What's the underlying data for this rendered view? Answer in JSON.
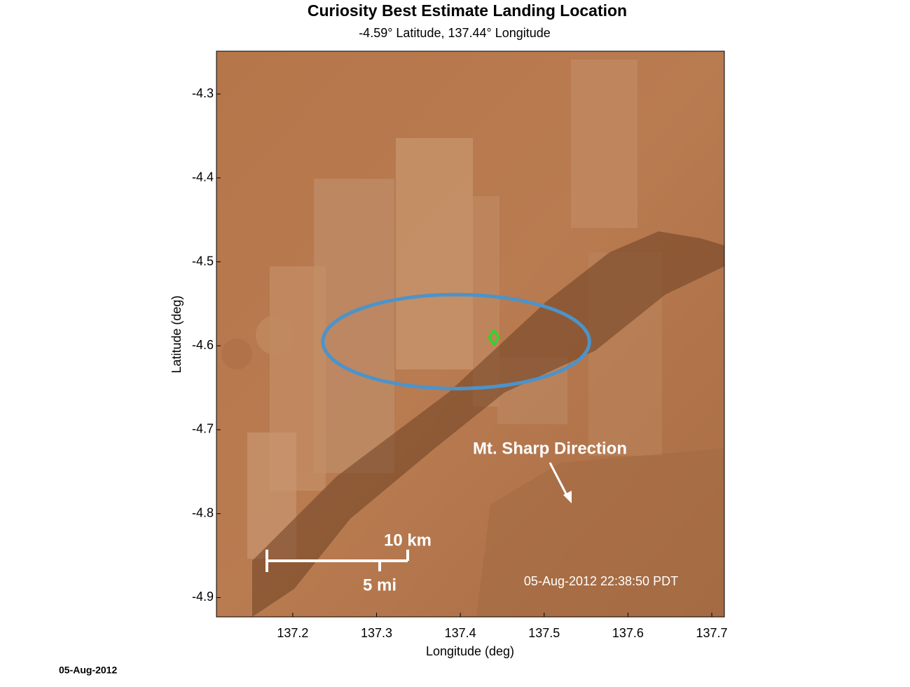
{
  "chart_data": {
    "type": "map",
    "title": "Curiosity Best Estimate Landing Location",
    "subtitle": "-4.59° Latitude, 137.44° Longitude",
    "x_label": "Longitude (deg)",
    "y_label": "Latitude (deg)",
    "xlim": [
      137.109,
      137.715
    ],
    "ylim": [
      -4.923,
      -4.249
    ],
    "xticks": [
      137.2,
      137.3,
      137.4,
      137.5,
      137.6,
      137.7
    ],
    "yticks": [
      -4.3,
      -4.4,
      -4.5,
      -4.6,
      -4.7,
      -4.8,
      -4.9
    ],
    "ellipse": {
      "cx": 137.395,
      "cy": -4.595,
      "rx": 0.159,
      "ry": 0.056,
      "color": "#4d93c9"
    },
    "point": {
      "x": 137.44,
      "y": -4.59,
      "color": "#22dd22"
    },
    "annotation": "Mt. Sharp Direction",
    "scale_bar": {
      "km_label": "10 km",
      "mi_label": "5 mi"
    },
    "timestamp": "05-Aug-2012 22:38:50 PDT",
    "footer_date": "05-Aug-2012"
  }
}
